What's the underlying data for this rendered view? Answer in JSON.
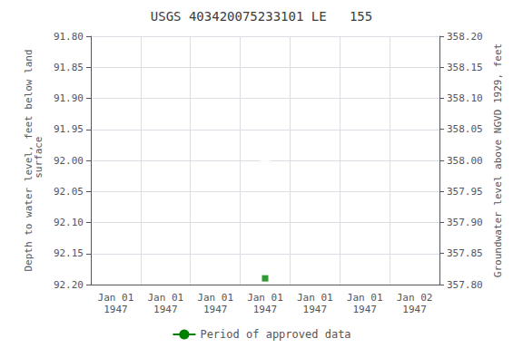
{
  "chart_data": {
    "type": "scatter",
    "title": "USGS 403420075233101 LE   155",
    "ylabel": "Depth to water level, feet below land\n surface",
    "y2label": "Groundwater level above NGVD 1929, feet",
    "categories": [
      "Jan 01\n1947",
      "Jan 01\n1947",
      "Jan 01\n1947",
      "Jan 01\n1947",
      "Jan 01\n1947",
      "Jan 01\n1947",
      "Jan 02\n1947"
    ],
    "series": [
      {
        "type": "scatter",
        "color": "blue",
        "marker": "open_circle",
        "values": [
          null,
          null,
          null,
          92.0,
          null,
          null,
          null
        ]
      },
      {
        "type": "scatter",
        "color": "green",
        "marker": "square",
        "values": [
          null,
          null,
          null,
          92.19,
          null,
          null,
          null
        ]
      },
      {
        "name": "Period of approved data",
        "type": "line",
        "color": "green",
        "values": [
          null,
          null,
          null,
          null,
          null,
          null,
          null
        ]
      }
    ],
    "ylim": [
      92.2,
      91.8
    ],
    "yticks": [
      {
        "value": 91.8,
        "label": "91.80"
      },
      {
        "value": 91.85,
        "label": "91.85"
      },
      {
        "value": 91.9,
        "label": "91.90"
      },
      {
        "value": 91.95,
        "label": "91.95"
      },
      {
        "value": 92.0,
        "label": "92.00"
      },
      {
        "value": 92.05,
        "label": "92.05"
      },
      {
        "value": 92.1,
        "label": "92.10"
      },
      {
        "value": 92.15,
        "label": "92.15"
      },
      {
        "value": 92.2,
        "label": "92.20"
      }
    ],
    "y2lim": [
      357.8,
      358.2
    ],
    "y2ticks": [
      {
        "value": 358.2,
        "label": "358.20"
      },
      {
        "value": 358.15,
        "label": "358.15"
      },
      {
        "value": 358.1,
        "label": "358.10"
      },
      {
        "value": 358.05,
        "label": "358.05"
      },
      {
        "value": 358.0,
        "label": "358.00"
      },
      {
        "value": 357.95,
        "label": "357.95"
      },
      {
        "value": 357.9,
        "label": "357.90"
      },
      {
        "value": 357.85,
        "label": "357.85"
      },
      {
        "value": 357.8,
        "label": "357.80"
      }
    ],
    "grid": true,
    "legend": "bottom"
  }
}
